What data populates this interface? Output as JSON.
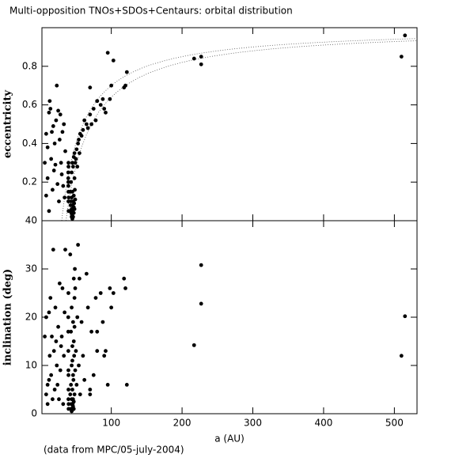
{
  "title": "Multi-opposition TNOs+SDOs+Centaurs: orbital distribution",
  "note": "(data from MPC/05-july-2004)",
  "chart_data": [
    {
      "type": "scatter",
      "ylabel": "eccentricity",
      "color": "#000000",
      "xlim": [
        2,
        532
      ],
      "xticks": [
        100,
        200,
        300,
        400,
        500
      ],
      "ylim": [
        0,
        1
      ],
      "yticks": [
        0.2,
        0.4,
        0.6,
        0.8
      ],
      "perihelion_curves": [
        30,
        36
      ],
      "x": [
        6,
        8,
        8,
        10,
        10,
        12,
        12,
        13,
        14,
        15,
        16,
        17,
        18,
        19,
        20,
        21,
        22,
        23,
        24,
        25,
        26,
        27,
        28,
        29,
        30,
        31,
        32,
        33,
        34,
        35,
        39.2,
        39.4,
        39.5,
        39.3,
        39.6,
        39.4,
        39.5,
        39.2,
        39.4,
        39.7,
        42,
        42.5,
        43,
        43.5,
        44,
        44,
        44.5,
        45,
        45,
        45.5,
        46,
        46,
        46.5,
        47,
        47,
        47.5,
        48,
        48,
        48.5,
        49,
        43,
        44,
        45,
        46,
        47,
        48,
        49,
        42,
        44,
        45,
        46,
        47,
        50,
        51,
        52,
        53,
        54,
        55,
        56,
        58,
        60,
        62,
        65,
        67,
        70,
        72,
        75,
        78,
        80,
        85,
        88,
        90,
        92,
        95,
        98,
        100,
        103,
        118,
        120,
        122,
        70,
        80,
        217,
        227,
        227,
        510,
        515
      ],
      "values": [
        0.3,
        0.45,
        0.13,
        0.38,
        0.22,
        0.05,
        0.56,
        0.62,
        0.58,
        0.32,
        0.46,
        0.16,
        0.49,
        0.26,
        0.4,
        0.29,
        0.52,
        0.7,
        0.19,
        0.57,
        0.1,
        0.42,
        0.55,
        0.3,
        0.24,
        0.46,
        0.18,
        0.5,
        0.12,
        0.36,
        0.25,
        0.1,
        0.3,
        0.2,
        0.05,
        0.15,
        0.28,
        0.22,
        0.18,
        0.12,
        0.05,
        0.08,
        0.1,
        0.04,
        0.06,
        0.12,
        0.03,
        0.08,
        0.15,
        0.05,
        0.1,
        0.02,
        0.07,
        0.13,
        0.04,
        0.09,
        0.22,
        0.06,
        0.16,
        0.11,
        0.2,
        0.25,
        0.3,
        0.28,
        0.33,
        0.35,
        0.3,
        0.15,
        0.02,
        0.01,
        0.04,
        0.07,
        0.32,
        0.37,
        0.28,
        0.4,
        0.42,
        0.35,
        0.45,
        0.44,
        0.47,
        0.52,
        0.5,
        0.48,
        0.55,
        0.5,
        0.58,
        0.52,
        0.62,
        0.6,
        0.63,
        0.58,
        0.56,
        0.87,
        0.63,
        0.7,
        0.83,
        0.69,
        0.7,
        0.77,
        0.69,
        0.62,
        0.84,
        0.85,
        0.81,
        0.85,
        0.96
      ]
    },
    {
      "type": "scatter",
      "xlabel": "a (AU)",
      "ylabel": "inclination (deg)",
      "color": "#000000",
      "xlim": [
        2,
        532
      ],
      "xticks": [
        100,
        200,
        300,
        400,
        500
      ],
      "ylim": [
        0,
        40
      ],
      "yticks": [
        0,
        10,
        20,
        30,
        40
      ],
      "x": [
        6,
        8,
        8,
        10,
        10,
        12,
        12,
        13,
        14,
        15,
        16,
        17,
        18,
        19,
        20,
        21,
        22,
        23,
        24,
        25,
        26,
        27,
        28,
        29,
        30,
        31,
        32,
        33,
        34,
        35,
        39.2,
        39.4,
        39.5,
        39.3,
        39.6,
        39.4,
        39.5,
        39.2,
        39.4,
        39.7,
        42,
        42.5,
        43,
        43.5,
        44,
        44,
        44.5,
        45,
        45,
        45.5,
        46,
        46,
        46.5,
        47,
        47,
        47.5,
        48,
        48,
        48.5,
        49,
        43,
        44,
        45,
        46,
        47,
        48,
        49,
        42,
        44,
        45,
        46,
        47,
        50,
        51,
        52,
        53,
        54,
        55,
        56,
        58,
        60,
        62,
        65,
        67,
        70,
        72,
        75,
        78,
        80,
        85,
        88,
        90,
        92,
        95,
        98,
        100,
        103,
        118,
        120,
        122,
        70,
        80,
        217,
        227,
        227,
        510,
        515
      ],
      "values": [
        16,
        4,
        20,
        6,
        2,
        7,
        21,
        12,
        24,
        8,
        16,
        3,
        34,
        13,
        5,
        22,
        15,
        10,
        6,
        18,
        3,
        27,
        9,
        14,
        16,
        26,
        2,
        12,
        21,
        34,
        17,
        3,
        8,
        13,
        1,
        25,
        5,
        20,
        9,
        2,
        4,
        1,
        6,
        2,
        3,
        10,
        1,
        5,
        14,
        2,
        19,
        3,
        7,
        28,
        1,
        12,
        24,
        4,
        30,
        9,
        17,
        22,
        11,
        8,
        15,
        18,
        26,
        33,
        0.5,
        0.8,
        1.5,
        2.5,
        13,
        6,
        20,
        35,
        10,
        28,
        4,
        19,
        12,
        7,
        29,
        22,
        5,
        17,
        8,
        24,
        13,
        25,
        19,
        12,
        13,
        6,
        26,
        22,
        25,
        28,
        26,
        6,
        4,
        17,
        14.2,
        30.8,
        22.8,
        12,
        20.2
      ]
    }
  ]
}
